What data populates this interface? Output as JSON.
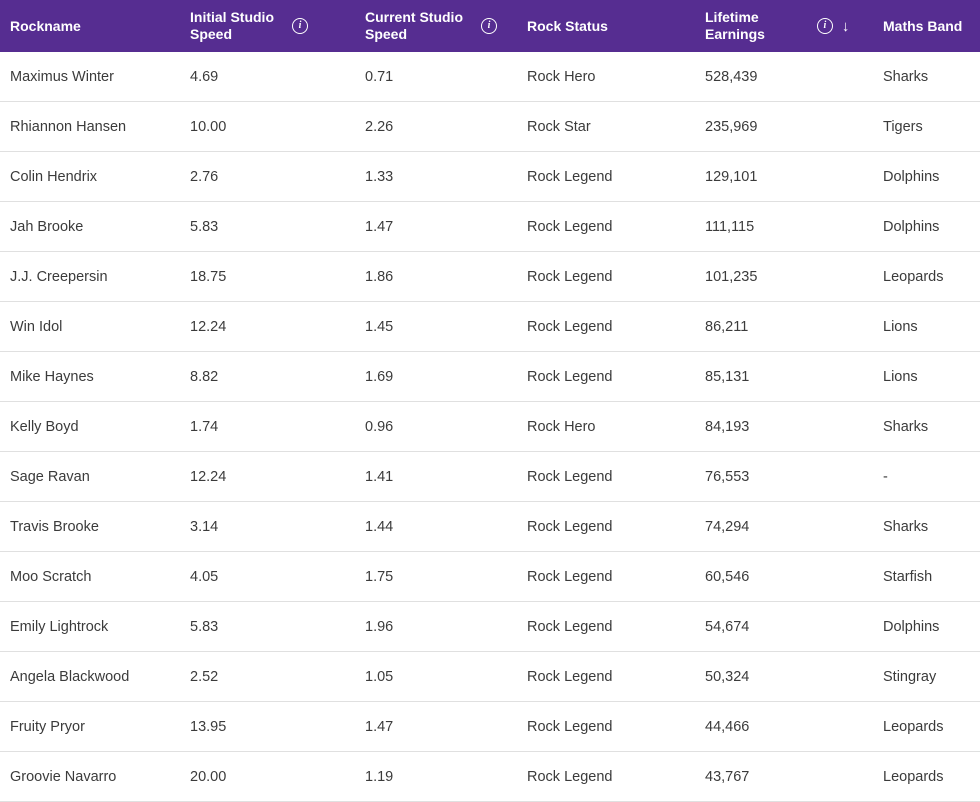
{
  "colors": {
    "header_bg": "#562d91",
    "header_text": "#ffffff",
    "body_text": "#3b3b3b",
    "row_divider": "#e0e0e0"
  },
  "icons": {
    "info": "i",
    "sort_desc": "↓"
  },
  "table": {
    "columns": [
      {
        "label": "Rockname",
        "lines": [
          "Rockname"
        ]
      },
      {
        "label": "Initial Studio Speed",
        "lines": [
          "Initial Studio",
          "Speed"
        ],
        "info": true
      },
      {
        "label": "Current Studio Speed",
        "lines": [
          "Current Studio",
          "Speed"
        ],
        "info": true
      },
      {
        "label": "Rock Status",
        "lines": [
          "Rock Status"
        ]
      },
      {
        "label": "Lifetime Earnings",
        "lines": [
          "Lifetime",
          "Earnings"
        ],
        "info": true,
        "sort": "desc"
      },
      {
        "label": "Maths Band",
        "lines": [
          "Maths Band"
        ]
      }
    ],
    "rows": [
      {
        "name": "Maximus Winter",
        "initial": "4.69",
        "current": "0.71",
        "status": "Rock Hero",
        "earnings": "528,439",
        "band": "Sharks"
      },
      {
        "name": "Rhiannon Hansen",
        "initial": "10.00",
        "current": "2.26",
        "status": "Rock Star",
        "earnings": "235,969",
        "band": "Tigers"
      },
      {
        "name": "Colin Hendrix",
        "initial": "2.76",
        "current": "1.33",
        "status": "Rock Legend",
        "earnings": "129,101",
        "band": "Dolphins"
      },
      {
        "name": "Jah Brooke",
        "initial": "5.83",
        "current": "1.47",
        "status": "Rock Legend",
        "earnings": "111,115",
        "band": "Dolphins"
      },
      {
        "name": "J.J. Creepersin",
        "initial": "18.75",
        "current": "1.86",
        "status": "Rock Legend",
        "earnings": "101,235",
        "band": "Leopards"
      },
      {
        "name": "Win Idol",
        "initial": "12.24",
        "current": "1.45",
        "status": "Rock Legend",
        "earnings": "86,211",
        "band": "Lions"
      },
      {
        "name": "Mike Haynes",
        "initial": "8.82",
        "current": "1.69",
        "status": "Rock Legend",
        "earnings": "85,131",
        "band": "Lions"
      },
      {
        "name": "Kelly Boyd",
        "initial": "1.74",
        "current": "0.96",
        "status": "Rock Hero",
        "earnings": "84,193",
        "band": "Sharks"
      },
      {
        "name": "Sage Ravan",
        "initial": "12.24",
        "current": "1.41",
        "status": "Rock Legend",
        "earnings": "76,553",
        "band": "-"
      },
      {
        "name": "Travis Brooke",
        "initial": "3.14",
        "current": "1.44",
        "status": "Rock Legend",
        "earnings": "74,294",
        "band": "Sharks"
      },
      {
        "name": "Moo Scratch",
        "initial": "4.05",
        "current": "1.75",
        "status": "Rock Legend",
        "earnings": "60,546",
        "band": "Starfish"
      },
      {
        "name": "Emily Lightrock",
        "initial": "5.83",
        "current": "1.96",
        "status": "Rock Legend",
        "earnings": "54,674",
        "band": "Dolphins"
      },
      {
        "name": "Angela Blackwood",
        "initial": "2.52",
        "current": "1.05",
        "status": "Rock Legend",
        "earnings": "50,324",
        "band": "Stingray"
      },
      {
        "name": "Fruity Pryor",
        "initial": "13.95",
        "current": "1.47",
        "status": "Rock Legend",
        "earnings": "44,466",
        "band": "Leopards"
      },
      {
        "name": "Groovie Navarro",
        "initial": "20.00",
        "current": "1.19",
        "status": "Rock Legend",
        "earnings": "43,767",
        "band": "Leopards"
      }
    ]
  }
}
